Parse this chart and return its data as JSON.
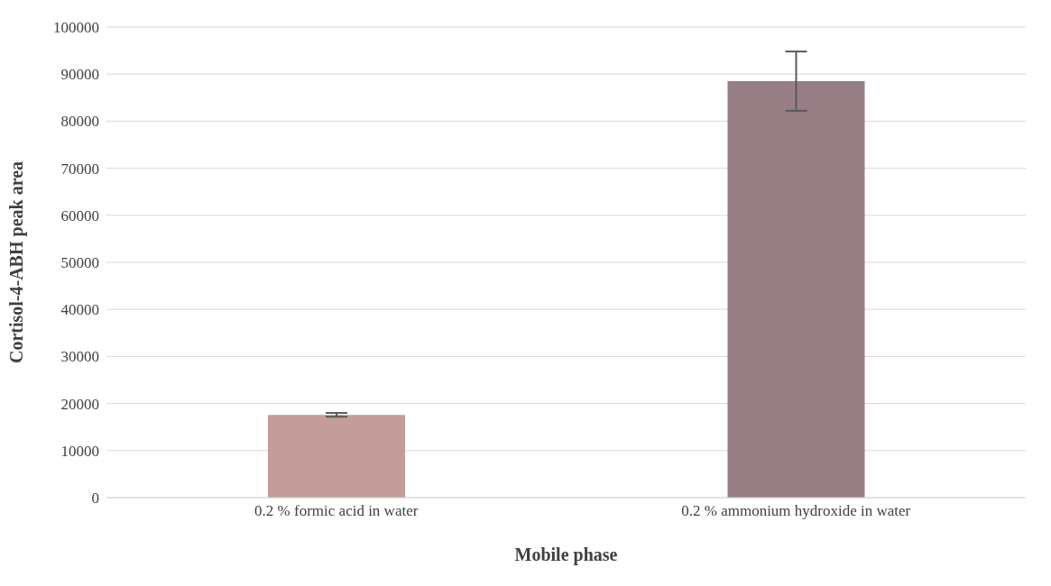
{
  "chart_data": {
    "type": "bar",
    "xlabel": "Mobile phase",
    "ylabel": "Cortisol-4-ABH peak area",
    "categories": [
      "0.2 % formic acid in water",
      "0.2 % ammonium hydroxide in water"
    ],
    "values": [
      17600,
      88500
    ],
    "colors": [
      "#c49c99",
      "#977e85"
    ],
    "errors": [
      400,
      6300
    ],
    "ylim": [
      0,
      100000
    ],
    "yticks": [
      0,
      10000,
      20000,
      30000,
      40000,
      50000,
      60000,
      70000,
      80000,
      90000,
      100000
    ],
    "grid": "y"
  }
}
